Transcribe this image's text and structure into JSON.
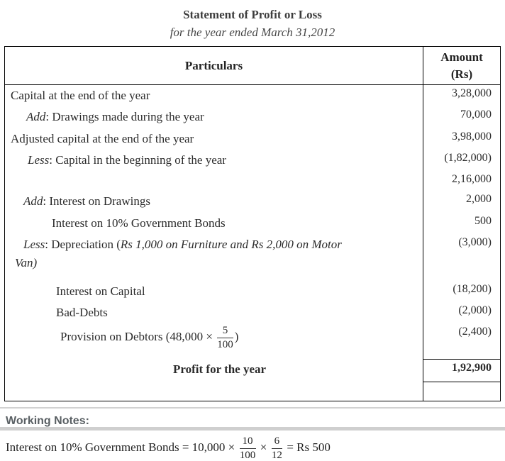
{
  "title": "Statement of Profit or Loss",
  "subtitle": "for the year ended March 31,2012",
  "table": {
    "particulars_header": "Particulars",
    "amount_header_line1": "Amount",
    "amount_header_line2": "(Rs)",
    "rows": [
      {
        "indent": 8,
        "segments": [
          {
            "v": "Capital at the end of the year"
          }
        ],
        "amount": "3,28,000"
      },
      {
        "indent": 30,
        "segments": [
          {
            "v": "Add",
            "i": true
          },
          {
            "v": ": Drawings made during the year"
          }
        ],
        "amount": "70,000"
      },
      {
        "indent": 8,
        "segments": [
          {
            "v": "Adjusted capital at the end of the year"
          }
        ],
        "amount": "3,98,000"
      },
      {
        "indent": 32,
        "segments": [
          {
            "v": "Less",
            "i": true
          },
          {
            "v": ": Capital in the beginning of the year"
          }
        ],
        "amount": "(1,82,000)"
      },
      {
        "indent": 8,
        "segments": [],
        "amount": "2,16,000"
      },
      {
        "indent": 26,
        "segments": [
          {
            "v": "Add",
            "i": true
          },
          {
            "v": ": Interest on Drawings"
          }
        ],
        "amount": "2,000"
      },
      {
        "indent": 66,
        "segments": [
          {
            "v": "Interest on 10% Government Bonds"
          }
        ],
        "amount": "500"
      },
      {
        "indent": 26,
        "hang": 12,
        "segments": [
          {
            "v": "Less",
            "i": true
          },
          {
            "v": ": Depreciation ("
          },
          {
            "v": "Rs 1,000 on Furniture and Rs 2,000 on Motor ",
            "i": true
          },
          {
            "br": true
          },
          {
            "v": "Van)",
            "i": true
          }
        ],
        "amount": "(3,000)"
      },
      {
        "indent": 72,
        "mt": 9,
        "segments": [
          {
            "v": "Interest on Capital"
          }
        ],
        "amount": "(18,200)"
      },
      {
        "indent": 72,
        "segments": [
          {
            "v": "Bad-Debts"
          }
        ],
        "amount": "(2,000)"
      },
      {
        "indent": 78,
        "min_height": 50,
        "segments": [
          {
            "v": "Provision on Debtors (48,000 × "
          },
          {
            "frac": [
              "5",
              "100"
            ]
          },
          {
            "v": ")"
          }
        ],
        "amount": "(2,400)"
      },
      {
        "indent": 237,
        "min_height": 33,
        "segments": [
          {
            "v": "Profit for the year",
            "b": true
          }
        ],
        "amount": "1,92,900",
        "amount_boxed": true
      },
      {
        "indent": 8,
        "min_height": 26,
        "segments": [],
        "amount": ""
      }
    ]
  },
  "working_notes": {
    "label": "Working Notes:",
    "segments": [
      {
        "v": "Interest on 10% Government Bonds = 10,000 × "
      },
      {
        "frac": [
          "10",
          "100"
        ]
      },
      {
        "v": " × "
      },
      {
        "frac": [
          "6",
          "12"
        ]
      },
      {
        "v": " = Rs 500"
      }
    ]
  }
}
